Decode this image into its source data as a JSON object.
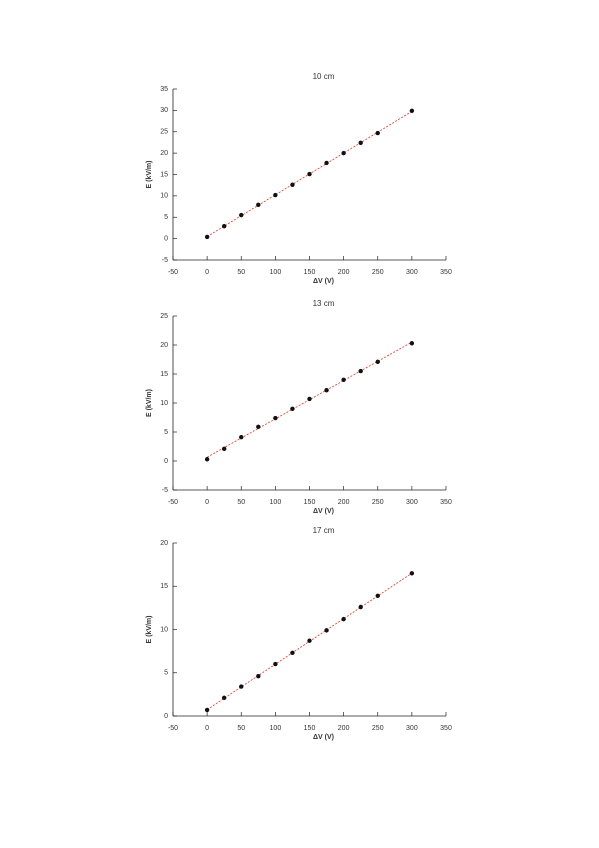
{
  "chart_data": [
    {
      "type": "scatter",
      "title": "10 cm",
      "x_label": "ΔV (V)",
      "y_label": "E (kV/m)",
      "x": [
        0,
        25,
        50,
        75,
        100,
        125,
        150,
        175,
        200,
        225,
        250,
        300
      ],
      "series": [
        {
          "color": "#111111",
          "values": [
            0.4,
            2.9,
            5.5,
            7.9,
            10.2,
            12.6,
            15.1,
            17.7,
            20,
            22.4,
            24.7,
            29.9
          ]
        }
      ],
      "fit_color": "#e0483a",
      "xlim": [
        -50,
        350
      ],
      "xticks": [
        -50,
        0,
        50,
        100,
        150,
        200,
        250,
        300,
        350
      ],
      "ylim": [
        -5,
        35
      ],
      "yticks": [
        -5,
        0,
        5,
        10,
        15,
        20,
        25,
        30,
        35
      ]
    },
    {
      "type": "scatter",
      "title": "13 cm",
      "x_label": "ΔV (V)",
      "y_label": "E (kV/m)",
      "x": [
        0,
        25,
        50,
        75,
        100,
        125,
        150,
        175,
        200,
        225,
        250,
        300
      ],
      "series": [
        {
          "color": "#111111",
          "values": [
            0.3,
            2.1,
            4.1,
            5.9,
            7.4,
            9.0,
            10.7,
            12.2,
            14,
            15.5,
            17.1,
            20.3
          ]
        }
      ],
      "fit_color": "#e0483a",
      "xlim": [
        -50,
        350
      ],
      "xticks": [
        -50,
        0,
        50,
        100,
        150,
        200,
        250,
        300,
        350
      ],
      "ylim": [
        -5,
        25
      ],
      "yticks": [
        -5,
        0,
        5,
        10,
        15,
        20,
        25
      ]
    },
    {
      "type": "scatter",
      "title": "17 cm",
      "x_label": "ΔV (V)",
      "y_label": "E (kV/m)",
      "x": [
        0,
        25,
        50,
        75,
        100,
        125,
        150,
        175,
        200,
        225,
        250,
        300
      ],
      "series": [
        {
          "color": "#111111",
          "values": [
            0.7,
            2.1,
            3.4,
            4.6,
            6.0,
            7.3,
            8.7,
            9.9,
            11.2,
            12.6,
            13.9,
            16.5
          ]
        }
      ],
      "fit_color": "#e0483a",
      "xlim": [
        -50,
        350
      ],
      "xticks": [
        -50,
        0,
        50,
        100,
        150,
        200,
        250,
        300,
        350
      ],
      "ylim": [
        0,
        20
      ],
      "yticks": [
        0,
        5,
        10,
        15,
        20
      ]
    }
  ]
}
